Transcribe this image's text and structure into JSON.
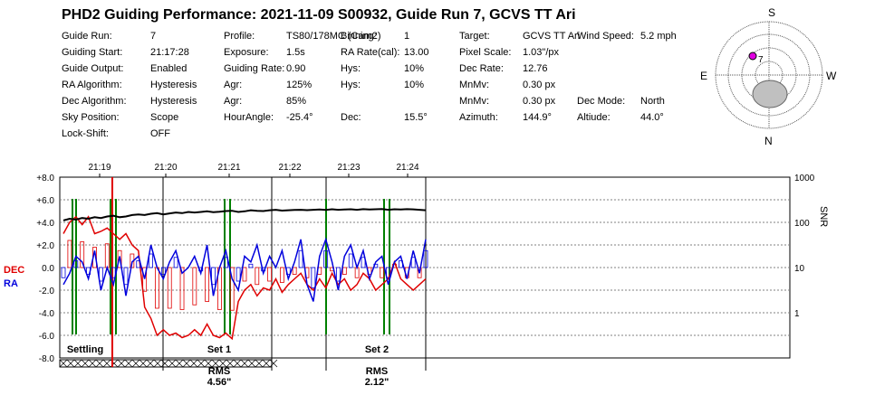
{
  "title": "PHD2 Guiding Performance: 2021-11-09 S00932, Guide Run 7, GCVS TT Ari",
  "info": [
    {
      "label": "Guide Run:",
      "value": "7"
    },
    {
      "label": "Guiding Start:",
      "value": "21:17:28"
    },
    {
      "label": "Guide Output:",
      "value": "Enabled"
    },
    {
      "label": "RA Algorithm:",
      "value": "Hysteresis"
    },
    {
      "label": "Dec Algorithm:",
      "value": "Hysteresis"
    },
    {
      "label": "Sky Position:",
      "value": "Scope"
    },
    {
      "label": "Lock-Shift:",
      "value": "OFF"
    },
    {
      "label": "Profile:",
      "value": "TS80/178MC (Cam2)"
    },
    {
      "label": "Exposure:",
      "value": "1.5s"
    },
    {
      "label": "Guiding Rate:",
      "value": "0.90"
    },
    {
      "label": "Agr:",
      "value": "125%"
    },
    {
      "label": "Agr:",
      "value": "85%"
    },
    {
      "label": "HourAngle:",
      "value": "-25.4°"
    },
    {
      "label": "Binning:",
      "value": "1"
    },
    {
      "label": "RA Rate(cal):",
      "value": "13.00"
    },
    {
      "label": "Hys:",
      "value": "10%"
    },
    {
      "label": "Hys:",
      "value": "10%"
    },
    {
      "label": "Dec:",
      "value": "15.5°"
    },
    {
      "label": "Target:",
      "value": "GCVS TT Ari"
    },
    {
      "label": "Pixel Scale:",
      "value": "1.03\"/px"
    },
    {
      "label": "Dec Rate:",
      "value": "12.76"
    },
    {
      "label": "MnMv:",
      "value": "0.30 px"
    },
    {
      "label": "MnMv:",
      "value": "0.30 px"
    },
    {
      "label": "Azimuth:",
      "value": "144.9°"
    },
    {
      "label": "Wind Speed:",
      "value": "5.2 mph"
    },
    {
      "label": "Dec Mode:",
      "value": "North"
    },
    {
      "label": "Altiude:",
      "value": "44.0°"
    }
  ],
  "polar": {
    "n": "N",
    "s": "S",
    "e": "E",
    "w": "W",
    "marker_label": "7",
    "marker_color": "#e000e0",
    "blob_color": "#c0c0c0"
  },
  "chart_data": {
    "type": "line",
    "x_ticks": [
      "21:19",
      "21:20",
      "21:21",
      "21:22",
      "21:23",
      "21:24"
    ],
    "y_ticks": [
      "+8.0",
      "+6.0",
      "+4.0",
      "+2.0",
      "0.0",
      "-2.0",
      "-4.0",
      "-6.0",
      "-8.0"
    ],
    "ylim": [
      -8,
      8
    ],
    "snr_ticks": [
      "1000",
      "100",
      "10",
      "1"
    ],
    "snr_label": "SNR",
    "left_labels": {
      "dec": "DEC",
      "ra": "RA"
    },
    "colors": {
      "dec": "#e00000",
      "ra": "#0000dd",
      "snr": "#000000",
      "dither": "#008000",
      "grid": "#808080"
    },
    "sections": [
      {
        "label": "Settling",
        "rms": "",
        "rms_value": ""
      },
      {
        "label": "Set 1",
        "rms": "RMS",
        "rms_value": "4.56\""
      },
      {
        "label": "Set 2",
        "rms": "RMS",
        "rms_value": "2.12\""
      }
    ],
    "series": [
      {
        "name": "DEC",
        "values": [
          3.0,
          4.0,
          4.5,
          3.8,
          4.5,
          3.0,
          3.2,
          3.5,
          3.0,
          2.5,
          3.0,
          2.0,
          1.5,
          -3.5,
          -4.5,
          -6.0,
          -5.5,
          -6.0,
          -5.8,
          -6.2,
          -6.0,
          -5.5,
          -6.0,
          -5.0,
          -6.0,
          -6.2,
          -5.8,
          -6.3,
          -3.0,
          -2.0,
          -1.5,
          -2.5,
          -1.8,
          -2.0,
          -1.0,
          -2.2,
          -1.5,
          -1.0,
          -0.5,
          -1.5,
          -2.0,
          -1.0,
          -1.8,
          -0.5,
          -1.5,
          -1.0,
          -2.0,
          -1.5,
          -0.5,
          -1.0,
          -2.0,
          -1.5,
          -1.0,
          0.5,
          -1.0,
          -1.5,
          -2.0,
          -1.5,
          -1.0
        ]
      },
      {
        "name": "RA",
        "values": [
          -1.5,
          -0.5,
          1.0,
          0.5,
          -1.0,
          1.5,
          -2.0,
          0.0,
          -1.5,
          1.0,
          -2.5,
          0.5,
          1.0,
          -1.0,
          2.0,
          0.0,
          -1.0,
          0.5,
          1.5,
          -0.5,
          0.0,
          1.0,
          -0.5,
          2.0,
          -2.5,
          0.0,
          1.5,
          -1.0,
          -2.0,
          1.0,
          0.5,
          2.0,
          -0.5,
          1.0,
          0.0,
          1.5,
          -1.0,
          0.5,
          2.5,
          -1.5,
          -3.0,
          1.0,
          2.5,
          0.5,
          -2.0,
          1.0,
          2.0,
          0.0,
          1.5,
          -1.0,
          0.5,
          1.0,
          -1.5,
          0.5,
          1.0,
          -1.0,
          1.5,
          -0.5,
          2.5
        ]
      },
      {
        "name": "SNR",
        "values": [
          110,
          120,
          115,
          125,
          120,
          130,
          125,
          135,
          140,
          130,
          135,
          145,
          150,
          145,
          155,
          160,
          150,
          158,
          165,
          160,
          170,
          165,
          170,
          175,
          168,
          172,
          178,
          180,
          170,
          175,
          185,
          180,
          178,
          185,
          190,
          182,
          185,
          188,
          190,
          186,
          190,
          192,
          188,
          195,
          190,
          192,
          195,
          190,
          196,
          192,
          195,
          198,
          190,
          195,
          192,
          196,
          194,
          190,
          185
        ]
      }
    ]
  }
}
